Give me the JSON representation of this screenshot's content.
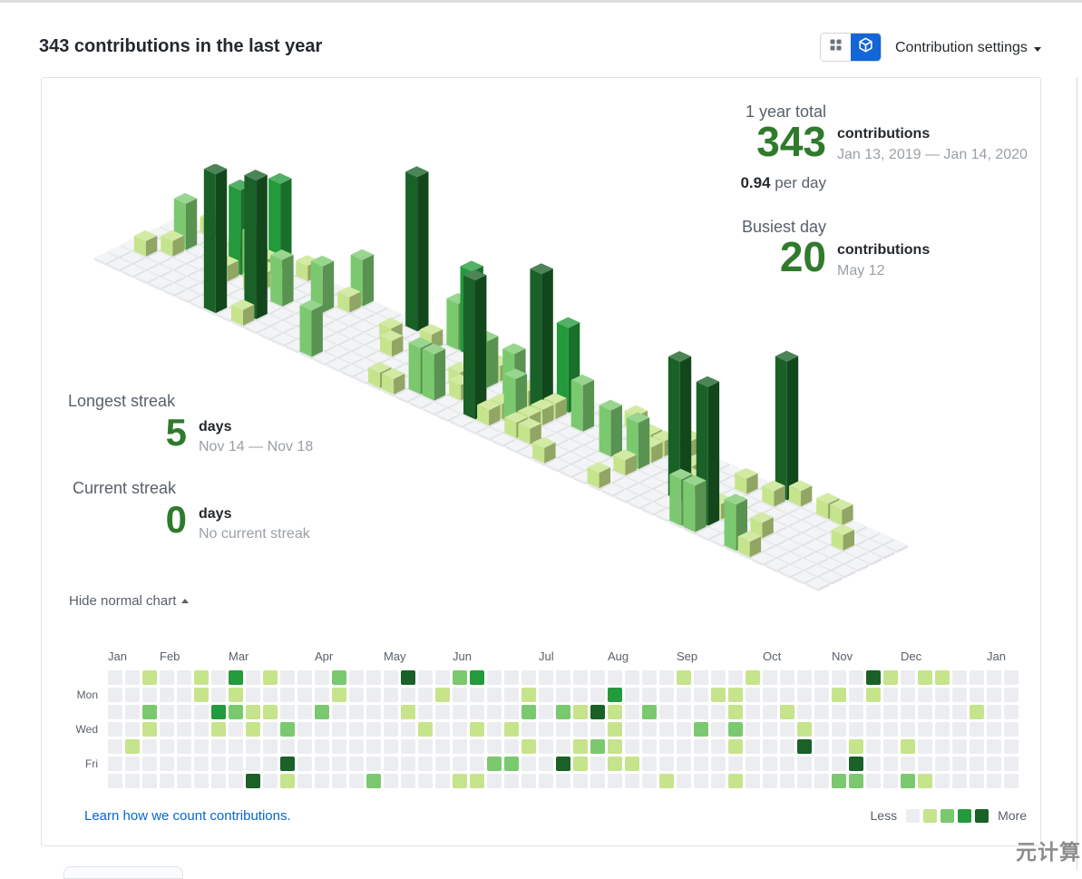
{
  "header": {
    "title": "343 contributions in the last year",
    "settings_label": "Contribution settings",
    "toggle": {
      "grid_view": "2d-grid-view",
      "iso_view": "3d-isometric-view",
      "active": "iso",
      "active_color": "#1266d6"
    }
  },
  "stats": {
    "year_total": {
      "label": "1 year total",
      "value": "343",
      "unit": "contributions",
      "range": "Jan 13, 2019 — Jan 14, 2020",
      "average": "0.94",
      "average_unit": "per day"
    },
    "busiest_day": {
      "label": "Busiest day",
      "value": "20",
      "unit": "contributions",
      "date": "May 12"
    },
    "longest_streak": {
      "label": "Longest streak",
      "value": "5",
      "unit": "days",
      "range": "Nov 14 — Nov 18"
    },
    "current_streak": {
      "label": "Current streak",
      "value": "0",
      "unit": "days",
      "note": "No current streak"
    }
  },
  "toggle_chart_label": "Hide normal chart",
  "footer": {
    "link": "Learn how we count contributions.",
    "legend_less": "Less",
    "legend_more": "More"
  },
  "watermark": "元计算",
  "accent_green": "#307a2d",
  "chart_data": {
    "type": "heatmap",
    "title": "GitHub contribution calendar, Jan 13 2019 — Jan 14 2020",
    "palette": [
      "#ebedf0",
      "#c6e48b",
      "#7bc96f",
      "#239a3b",
      "#196127"
    ],
    "level_counts": [
      0,
      2,
      6,
      11,
      18
    ],
    "busiest_cell": {
      "week": 17,
      "day": 0,
      "count": 20
    },
    "day_labels": [
      {
        "label": "Mon",
        "row": 1
      },
      {
        "label": "Wed",
        "row": 3
      },
      {
        "label": "Fri",
        "row": 5
      }
    ],
    "months": [
      {
        "label": "Jan",
        "week": 0
      },
      {
        "label": "Feb",
        "week": 3
      },
      {
        "label": "Mar",
        "week": 7
      },
      {
        "label": "Apr",
        "week": 12
      },
      {
        "label": "May",
        "week": 16
      },
      {
        "label": "Jun",
        "week": 20
      },
      {
        "label": "Jul",
        "week": 25
      },
      {
        "label": "Aug",
        "week": 29
      },
      {
        "label": "Sep",
        "week": 33
      },
      {
        "label": "Oct",
        "week": 38
      },
      {
        "label": "Nov",
        "week": 42
      },
      {
        "label": "Dec",
        "week": 46
      },
      {
        "label": "Jan",
        "week": 51
      }
    ],
    "weeks": [
      "0000000",
      "0000100",
      "1021000",
      "0000000",
      "0000000",
      "1100000",
      "0031000",
      "3120000",
      "0011004",
      "1010000",
      "0002041",
      "0000000",
      "0020000",
      "2100000",
      "0000000",
      "0000002",
      "0000000",
      "4010000",
      "0001000",
      "0100000",
      "2000001",
      "3001001",
      "0000020",
      "0001020",
      "0120100",
      "0000000",
      "0020040",
      "0010110",
      "0040200",
      "0311110",
      "0000010",
      "0020000",
      "0000001",
      "1000000",
      "0002000",
      "0100000",
      "0112101",
      "1000000",
      "0000000",
      "0010000",
      "0001400",
      "0000000",
      "0100002",
      "0000142",
      "4100000",
      "1000000",
      "0000102",
      "1000001",
      "1000000",
      "0000000",
      "0010000",
      "0000000",
      "0000000"
    ]
  }
}
